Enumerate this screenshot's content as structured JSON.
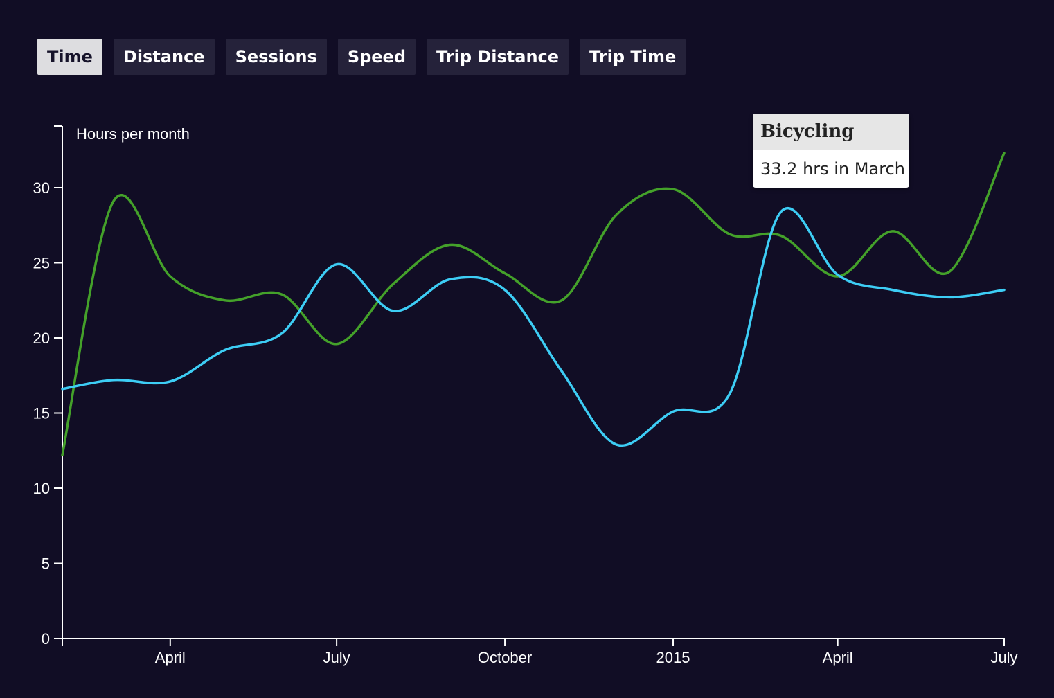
{
  "tabs": [
    {
      "label": "Time",
      "active": true
    },
    {
      "label": "Distance",
      "active": false
    },
    {
      "label": "Sessions",
      "active": false
    },
    {
      "label": "Speed",
      "active": false
    },
    {
      "label": "Trip Distance",
      "active": false
    },
    {
      "label": "Trip Time",
      "active": false
    }
  ],
  "tooltip": {
    "title": "Bicycling",
    "body": "33.2 hrs in March"
  },
  "colors": {
    "background": "#110d25",
    "axis": "#ffffff",
    "series_green": "#44a12a",
    "series_blue": "#3dcdf5"
  },
  "chart_data": {
    "type": "line",
    "ylabel": "Hours per month",
    "ylim": [
      0,
      34
    ],
    "y_ticks": [
      0,
      5,
      10,
      15,
      20,
      25,
      30
    ],
    "x_range": [
      "2014-02-01",
      "2015-07-01"
    ],
    "x_ticks": [
      {
        "date": "2014-04-01",
        "label": "April"
      },
      {
        "date": "2014-07-01",
        "label": "July"
      },
      {
        "date": "2014-10-01",
        "label": "October"
      },
      {
        "date": "2015-01-01",
        "label": "2015"
      },
      {
        "date": "2015-04-01",
        "label": "April"
      },
      {
        "date": "2015-07-01",
        "label": "July"
      }
    ],
    "grid": false,
    "series": [
      {
        "color": "#44a12a",
        "points": [
          [
            "2014-02-01",
            12.2
          ],
          [
            "2014-03-01",
            29.1
          ],
          [
            "2014-04-01",
            24.1
          ],
          [
            "2014-05-01",
            22.5
          ],
          [
            "2014-06-01",
            22.9
          ],
          [
            "2014-07-01",
            19.6
          ],
          [
            "2014-08-01",
            23.6
          ],
          [
            "2014-09-01",
            26.2
          ],
          [
            "2014-10-01",
            24.3
          ],
          [
            "2014-11-01",
            22.5
          ],
          [
            "2014-12-01",
            28.2
          ],
          [
            "2015-01-01",
            29.9
          ],
          [
            "2015-02-01",
            26.9
          ],
          [
            "2015-03-01",
            26.8
          ],
          [
            "2015-04-01",
            24.1
          ],
          [
            "2015-05-01",
            27.1
          ],
          [
            "2015-06-01",
            24.4
          ],
          [
            "2015-07-01",
            32.3
          ]
        ]
      },
      {
        "color": "#3dcdf5",
        "points": [
          [
            "2014-02-01",
            16.6
          ],
          [
            "2014-03-01",
            17.2
          ],
          [
            "2014-04-01",
            17.1
          ],
          [
            "2014-05-01",
            19.2
          ],
          [
            "2014-06-01",
            20.3
          ],
          [
            "2014-07-01",
            24.9
          ],
          [
            "2014-08-01",
            21.8
          ],
          [
            "2014-09-01",
            23.9
          ],
          [
            "2014-10-01",
            23.2
          ],
          [
            "2014-11-01",
            17.8
          ],
          [
            "2014-12-01",
            12.9
          ],
          [
            "2015-01-01",
            15.1
          ],
          [
            "2015-02-01",
            16.3
          ],
          [
            "2015-03-01",
            28.4
          ],
          [
            "2015-04-01",
            24.2
          ],
          [
            "2015-05-01",
            23.2
          ],
          [
            "2015-06-01",
            22.7
          ],
          [
            "2015-07-01",
            23.2
          ]
        ]
      }
    ]
  }
}
